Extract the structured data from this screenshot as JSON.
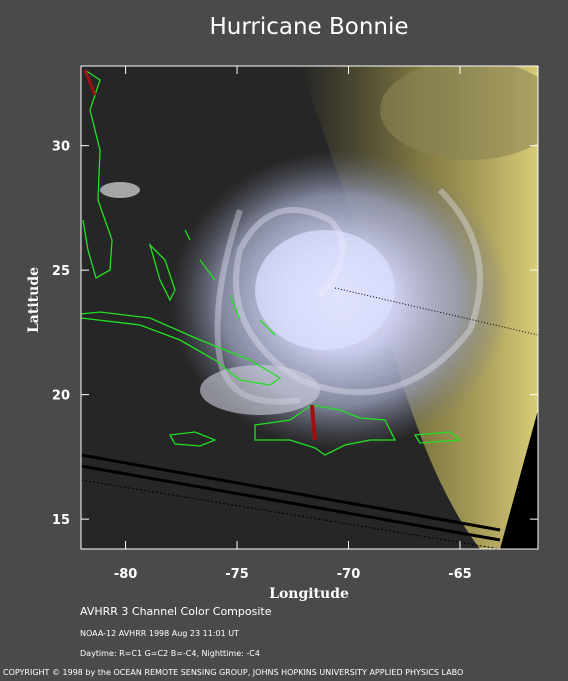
{
  "chart_data": {
    "type": "map",
    "title": "Hurricane Bonnie",
    "x_label": "Longitude",
    "y_label": "Latitude",
    "xlim": [
      -82,
      -61.5
    ],
    "ylim": [
      13.8,
      33.2
    ],
    "xticks": [
      -80,
      -75,
      -70,
      -65
    ],
    "yticks": [
      15,
      20,
      25,
      30
    ]
  },
  "captions": [
    "AVHRR 3 Channel Color Composite",
    "NOAA-12 AVHRR 1998 Aug 23 11:01 UT",
    "Daytime: R=C1 G=C2 B=-C4, Nighttime: -C4"
  ],
  "copyright": "COPYRIGHT © 1998 by the OCEAN REMOTE SENSING GROUP, JOHNS HOPKINS UNIVERSITY APPLIED PHYSICS LABO"
}
